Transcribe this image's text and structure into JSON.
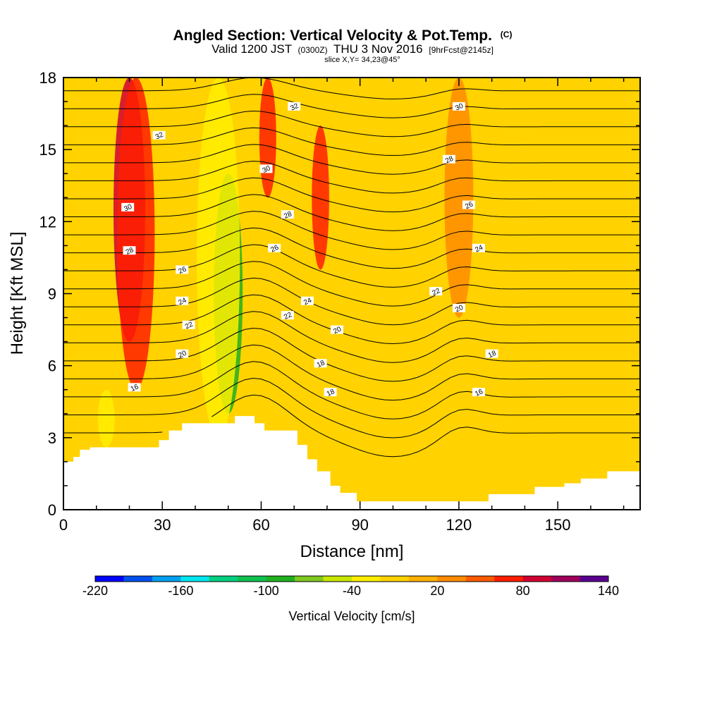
{
  "chart_data": {
    "type": "heatmap",
    "title": "Angled Section: Vertical Velocity & Pot.Temp.",
    "title_units": "(C)",
    "subtitle_valid": "Valid 1200 JST",
    "subtitle_utc": "(0300Z)",
    "subtitle_date": "THU 3 Nov 2016",
    "subtitle_fcst": "[9hrFcst@2145z]",
    "subtitle_slice": "slice X,Y= 34,23@45°",
    "xlabel": "Distance [nm]",
    "ylabel": "Height [Kft MSL]",
    "xlim": [
      0,
      175
    ],
    "ylim": [
      0,
      18
    ],
    "x_ticks": [
      0,
      30,
      60,
      90,
      120,
      150
    ],
    "y_ticks": [
      0,
      3,
      6,
      9,
      12,
      15,
      18
    ],
    "colorbar": {
      "label": "Vertical Velocity [cm/s]",
      "tick_values": [
        -220,
        -160,
        -100,
        -40,
        20,
        80,
        140
      ],
      "boundaries": [
        -220,
        -200,
        -180,
        -160,
        -140,
        -120,
        -100,
        -80,
        -60,
        -40,
        -20,
        0,
        20,
        40,
        60,
        80,
        100,
        120,
        140
      ],
      "colors": [
        "#0000ff",
        "#0050f0",
        "#00a0f0",
        "#00e6f0",
        "#00d080",
        "#10c050",
        "#20b020",
        "#80c820",
        "#c8e600",
        "#ffee00",
        "#ffd200",
        "#ffb000",
        "#ff8c00",
        "#ff5a00",
        "#ff1e00",
        "#d20032",
        "#a0005a",
        "#5a0090"
      ]
    },
    "velocity_bands": [
      {
        "x": 20,
        "zmin": 7,
        "zmax": 18,
        "value": 90
      },
      {
        "x": 22,
        "zmin": 5,
        "zmax": 18,
        "value": 60
      },
      {
        "x": 50,
        "zmin": 4,
        "zmax": 14,
        "value": -90
      },
      {
        "x": 47,
        "zmin": 3,
        "zmax": 18,
        "value": -40
      },
      {
        "x": 13,
        "zmin": 2.6,
        "zmax": 5,
        "value": -40
      },
      {
        "x": 62,
        "zmin": 13,
        "zmax": 18,
        "value": 60
      },
      {
        "x": 78,
        "zmin": 10,
        "zmax": 16,
        "value": 70
      },
      {
        "x": 120,
        "zmin": 8,
        "zmax": 18,
        "value": 30
      }
    ],
    "theta_contours": [
      16,
      18,
      20,
      22,
      24,
      26,
      28,
      30,
      32
    ],
    "contour_labels": [
      {
        "value": "16",
        "x": 21.5,
        "z": 5.1
      },
      {
        "value": "20",
        "x": 36,
        "z": 6.5
      },
      {
        "value": "22",
        "x": 38,
        "z": 7.7
      },
      {
        "value": "24",
        "x": 36,
        "z": 8.7
      },
      {
        "value": "26",
        "x": 36,
        "z": 10.0
      },
      {
        "value": "28",
        "x": 20,
        "z": 10.8
      },
      {
        "value": "30",
        "x": 19.5,
        "z": 12.6
      },
      {
        "value": "32",
        "x": 29,
        "z": 15.6
      },
      {
        "value": "30",
        "x": 61.5,
        "z": 14.2
      },
      {
        "value": "32",
        "x": 70,
        "z": 16.8
      },
      {
        "value": "28",
        "x": 68,
        "z": 12.3
      },
      {
        "value": "26",
        "x": 64,
        "z": 10.9
      },
      {
        "value": "22",
        "x": 68,
        "z": 8.1
      },
      {
        "value": "24",
        "x": 74,
        "z": 8.7
      },
      {
        "value": "20",
        "x": 83,
        "z": 7.5
      },
      {
        "value": "18",
        "x": 78,
        "z": 6.1
      },
      {
        "value": "18",
        "x": 81,
        "z": 4.9
      },
      {
        "value": "22",
        "x": 113,
        "z": 9.1
      },
      {
        "value": "20",
        "x": 120,
        "z": 8.4
      },
      {
        "value": "18",
        "x": 130,
        "z": 6.5
      },
      {
        "value": "16",
        "x": 126,
        "z": 4.9
      },
      {
        "value": "30",
        "x": 120,
        "z": 16.8
      },
      {
        "value": "28",
        "x": 117,
        "z": 14.6
      },
      {
        "value": "26",
        "x": 123,
        "z": 12.7
      },
      {
        "value": "24",
        "x": 126,
        "z": 10.9
      }
    ],
    "terrain": [
      [
        0,
        2.0
      ],
      [
        3,
        2.0
      ],
      [
        3,
        2.2
      ],
      [
        5,
        2.2
      ],
      [
        5,
        2.5
      ],
      [
        8,
        2.5
      ],
      [
        8,
        2.6
      ],
      [
        29,
        2.6
      ],
      [
        29,
        2.9
      ],
      [
        32,
        2.9
      ],
      [
        32,
        3.3
      ],
      [
        36,
        3.3
      ],
      [
        36,
        3.6
      ],
      [
        52,
        3.6
      ],
      [
        52,
        3.9
      ],
      [
        58,
        3.9
      ],
      [
        58,
        3.6
      ],
      [
        61,
        3.6
      ],
      [
        61,
        3.3
      ],
      [
        71,
        3.3
      ],
      [
        71,
        2.7
      ],
      [
        74,
        2.7
      ],
      [
        74,
        2.1
      ],
      [
        77,
        2.1
      ],
      [
        77,
        1.6
      ],
      [
        81,
        1.6
      ],
      [
        81,
        1.0
      ],
      [
        84,
        1.0
      ],
      [
        84,
        0.7
      ],
      [
        89,
        0.7
      ],
      [
        89,
        0.35
      ],
      [
        129,
        0.35
      ],
      [
        129,
        0.65
      ],
      [
        143,
        0.65
      ],
      [
        143,
        0.95
      ],
      [
        152,
        0.95
      ],
      [
        152,
        1.1
      ],
      [
        157,
        1.1
      ],
      [
        157,
        1.3
      ],
      [
        165,
        1.3
      ],
      [
        165,
        1.6
      ],
      [
        175,
        1.6
      ]
    ]
  }
}
